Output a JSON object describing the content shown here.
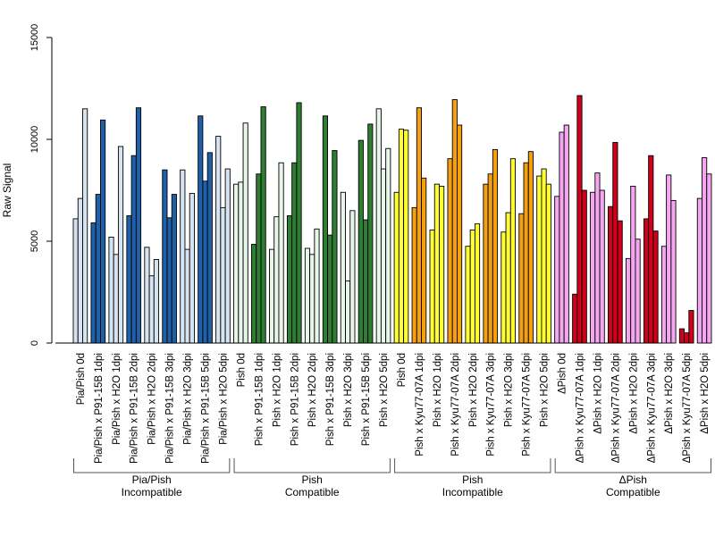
{
  "chart_data": {
    "type": "bar",
    "title": "",
    "xlabel": "",
    "ylabel": "Raw Signal",
    "ylim": [
      0,
      15000
    ],
    "yticks": [
      0,
      5000,
      10000,
      15000
    ],
    "yticks_labels": [
      "0",
      "5000",
      "10000",
      "15000"
    ],
    "legend": false,
    "grid": false,
    "groups": [
      {
        "line1": "Pia/Pish",
        "line2": "Incompatible",
        "colors": {
          "incompatible": "#2060a8",
          "control": "#d6e4f2"
        },
        "conditions": [
          {
            "label": "Pia/Pish 0d",
            "type": "control",
            "values": [
              6100,
              7100,
              11500
            ]
          },
          {
            "label": "Pia/Pish x P91-15B 1dpi",
            "type": "incompatible",
            "values": [
              5900,
              7300,
              10950
            ]
          },
          {
            "label": "Pia/Pish x H2O 1dpi",
            "type": "control",
            "values": [
              5200,
              4350,
              9650
            ]
          },
          {
            "label": "Pia/Pish x P91-15B 2dpi",
            "type": "incompatible",
            "values": [
              6250,
              9200,
              11550
            ]
          },
          {
            "label": "Pia/Pish x H2O 2dpi",
            "type": "control",
            "values": [
              4700,
              3300,
              4100
            ]
          },
          {
            "label": "Pia/Pish x P91-15B 3dpi",
            "type": "incompatible",
            "values": [
              8500,
              6150,
              7300
            ]
          },
          {
            "label": "Pia/Pish x H2O 3dpi",
            "type": "control",
            "values": [
              8500,
              4600,
              7350
            ]
          },
          {
            "label": "Pia/Pish x P91-15B 5dpi",
            "type": "incompatible",
            "values": [
              11150,
              7950,
              9350
            ]
          },
          {
            "label": "Pia/Pish x H2O 5dpi",
            "type": "control",
            "values": [
              10150,
              6650,
              8550
            ]
          }
        ]
      },
      {
        "line1": "Pish",
        "line2": "Compatible",
        "colors": {
          "incompatible": "#2e7d32",
          "control": "#e8f5e9"
        },
        "conditions": [
          {
            "label": "Pish 0d",
            "type": "control",
            "values": [
              7800,
              7900,
              10800
            ]
          },
          {
            "label": "Pish x P91-15B 1dpi",
            "type": "incompatible",
            "values": [
              4850,
              8300,
              11600
            ]
          },
          {
            "label": "Pish x H2O 1dpi",
            "type": "control",
            "values": [
              4600,
              6200,
              8850
            ]
          },
          {
            "label": "Pish x P91-15B 2dpi",
            "type": "incompatible",
            "values": [
              6250,
              8850,
              11800
            ]
          },
          {
            "label": "Pish x H2O 2dpi",
            "type": "control",
            "values": [
              4650,
              4350,
              5600
            ]
          },
          {
            "label": "Pish x P91-15B 3dpi",
            "type": "incompatible",
            "values": [
              11150,
              5300,
              9450
            ]
          },
          {
            "label": "Pish x H2O 3dpi",
            "type": "control",
            "values": [
              7400,
              3050,
              6500
            ]
          },
          {
            "label": "Pish x P91-15B 5dpi",
            "type": "incompatible",
            "values": [
              9950,
              6050,
              10750
            ]
          },
          {
            "label": "Pish x H2O 5dpi",
            "type": "control",
            "values": [
              11500,
              8550,
              9550
            ]
          }
        ]
      },
      {
        "line1": "Pish",
        "line2": "Incompatible",
        "colors": {
          "incompatible": "#f5a00f",
          "control": "#ffff33"
        },
        "conditions": [
          {
            "label": "Pish 0d",
            "type": "control",
            "values": [
              7400,
              10500,
              10450
            ]
          },
          {
            "label": "Pish x Kyu77-07A 1dpi",
            "type": "incompatible",
            "values": [
              6650,
              11550,
              8100
            ]
          },
          {
            "label": "Pish x H2O 1dpi",
            "type": "control",
            "values": [
              5550,
              7800,
              7700
            ]
          },
          {
            "label": "Pish x Kyu77-07A 2dpi",
            "type": "incompatible",
            "values": [
              9050,
              11950,
              10700
            ]
          },
          {
            "label": "Pish x H2O 2dpi",
            "type": "control",
            "values": [
              4750,
              5550,
              5850
            ]
          },
          {
            "label": "Pish x Kyu77-07A 3dpi",
            "type": "incompatible",
            "values": [
              7800,
              8300,
              9500
            ]
          },
          {
            "label": "Pish x H2O 3dpi",
            "type": "control",
            "values": [
              5450,
              6400,
              9050
            ]
          },
          {
            "label": "Pish x Kyu77-07A 5dpi",
            "type": "incompatible",
            "values": [
              6350,
              8850,
              9400
            ]
          },
          {
            "label": "Pish x H2O 5dpi",
            "type": "control",
            "values": [
              8200,
              8550,
              7800
            ]
          }
        ]
      },
      {
        "line1": "ΔPish",
        "line2": "Compatible",
        "colors": {
          "incompatible": "#d0021b",
          "control": "#f4a6f0"
        },
        "conditions": [
          {
            "label": "ΔPish 0d",
            "type": "control",
            "values": [
              7200,
              10350,
              10700
            ]
          },
          {
            "label": "ΔPish x Kyu77-07A 1dpi",
            "type": "incompatible",
            "values": [
              2400,
              12150,
              7500
            ]
          },
          {
            "label": "ΔPish x H2O 1dpi",
            "type": "control",
            "values": [
              7400,
              8350,
              7500
            ]
          },
          {
            "label": "ΔPish x Kyu77-07A 2dpi",
            "type": "incompatible",
            "values": [
              6700,
              9850,
              6000
            ]
          },
          {
            "label": "ΔPish x H2O 2dpi",
            "type": "control",
            "values": [
              4150,
              7700,
              5100
            ]
          },
          {
            "label": "ΔPish x Kyu77-07A 3dpi",
            "type": "incompatible",
            "values": [
              6100,
              9200,
              5500
            ]
          },
          {
            "label": "ΔPish x H2O 3dpi",
            "type": "control",
            "values": [
              4750,
              8250,
              7000
            ]
          },
          {
            "label": "ΔPish x Kyu77-07A 5dpi",
            "type": "incompatible",
            "values": [
              700,
              500,
              1600
            ]
          },
          {
            "label": "ΔPish x H2O 5dpi",
            "type": "control",
            "values": [
              7100,
              9100,
              8300
            ]
          }
        ]
      }
    ]
  }
}
